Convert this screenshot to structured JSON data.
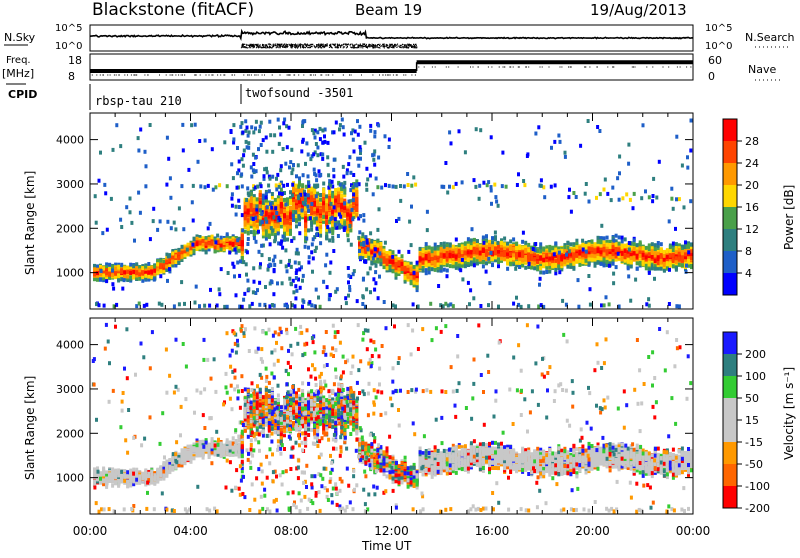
{
  "header": {
    "station": "Blackstone (fitACF)",
    "beam": "Beam 19",
    "date": "19/Aug/2013"
  },
  "colors": {
    "power_scale": [
      "#0000ff",
      "#1e5fc8",
      "#2e7f7f",
      "#4aa04a",
      "#ffd700",
      "#ff9900",
      "#ff4400",
      "#ff0000"
    ],
    "velocity_scale": [
      "#1a1aff",
      "#2e7f7f",
      "#33cc33",
      "#c8c8c8",
      "#c8c8c8",
      "#ff9900",
      "#ff6600",
      "#ff0000"
    ]
  },
  "chart_data": [
    {
      "type": "line",
      "name": "nsky-nsearch",
      "left_label": "N.Sky",
      "right_label": "N.Search",
      "left_ticks": [
        "10^5",
        "10^0"
      ],
      "right_ticks": [
        "10^5",
        "10^0"
      ]
    },
    {
      "type": "line",
      "name": "freq-nave",
      "left_label": [
        "Freq.",
        "[MHz]"
      ],
      "right_label": "Nave",
      "left_ticks": [
        "18",
        "8"
      ],
      "right_ticks": [
        "60",
        "0"
      ],
      "freq_segments": [
        {
          "x": [
            0,
            13
          ],
          "y": 10.5
        },
        {
          "x": [
            13,
            24
          ],
          "y": 16
        }
      ]
    },
    {
      "type": "table",
      "name": "cpid",
      "label": "CPID",
      "programs": [
        {
          "start_h": 0,
          "text": "rbsp-tau 210"
        },
        {
          "start_h": 6,
          "text": "twofsound -3501"
        }
      ]
    },
    {
      "type": "heatmap",
      "name": "power",
      "ylabel": "Slant Range [km]",
      "yticks": [
        1000,
        2000,
        3000,
        4000
      ],
      "ylim": [
        180,
        4600
      ],
      "xlim": [
        0,
        24
      ],
      "colorbar": {
        "label": "Power [dB]",
        "ticks": [
          "4",
          "8",
          "12",
          "16",
          "20",
          "24",
          "28"
        ]
      }
    },
    {
      "type": "heatmap",
      "name": "velocity",
      "ylabel": "Slant Range [km]",
      "yticks": [
        1000,
        2000,
        3000,
        4000
      ],
      "ylim": [
        180,
        4600
      ],
      "xlim": [
        0,
        24
      ],
      "colorbar": {
        "label": "Velocity [m s⁻¹]",
        "ticks": [
          "-200",
          "-100",
          "-50",
          "-15",
          "15",
          "50",
          "100",
          "200"
        ]
      }
    }
  ],
  "xaxis": {
    "label": "Time UT",
    "ticks": [
      "00:00",
      "04:00",
      "08:00",
      "12:00",
      "16:00",
      "20:00",
      "00:00"
    ]
  }
}
